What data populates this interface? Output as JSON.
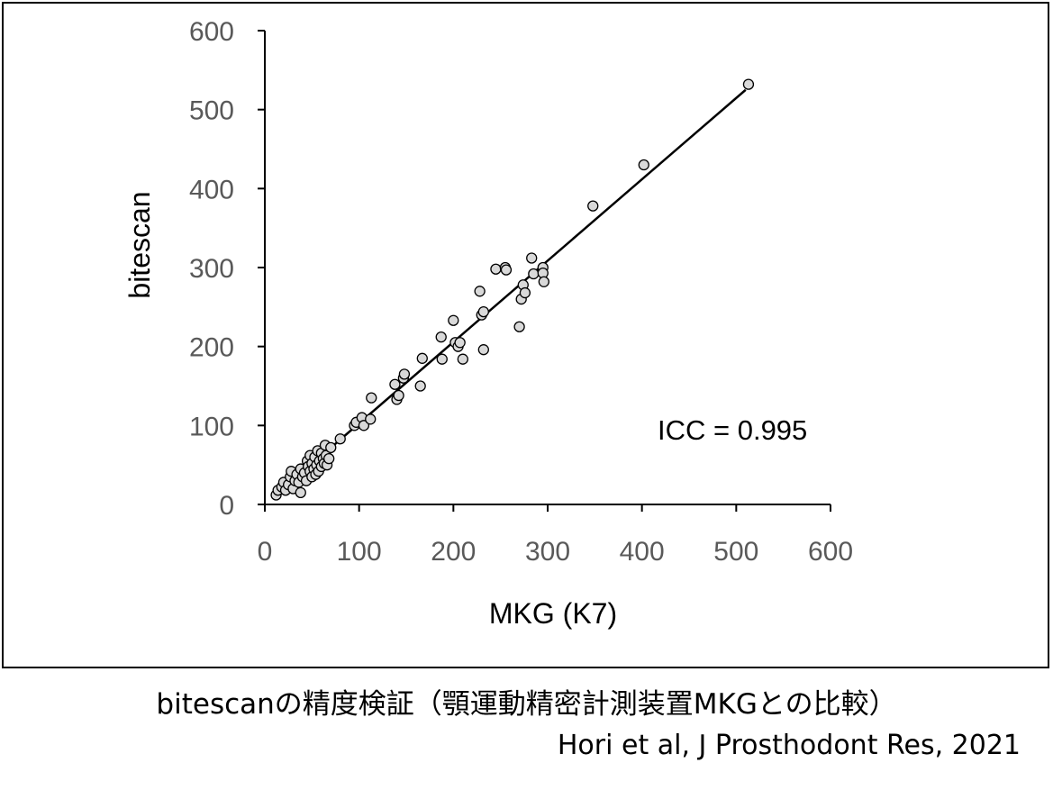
{
  "caption": "bitescanの精度検証（顎運動精密計測装置MKGとの比較）",
  "citation": "Hori et al, J Prosthodont Res, 2021",
  "chart_data": {
    "type": "scatter",
    "xlabel": "MKG (K7)",
    "ylabel": "bitescan",
    "xlim": [
      0,
      600
    ],
    "ylim": [
      0,
      600
    ],
    "xticks": [
      0,
      100,
      200,
      300,
      400,
      500,
      600
    ],
    "yticks": [
      0,
      100,
      200,
      300,
      400,
      500,
      600
    ],
    "grid": false,
    "annotation": "ICC = 0.995",
    "fit_line": {
      "x": [
        10,
        510
      ],
      "y": [
        10,
        525
      ]
    },
    "marker_fill": "#d9d9d9",
    "marker_edge": "#000000",
    "points": [
      [
        12,
        12
      ],
      [
        14,
        18
      ],
      [
        18,
        22
      ],
      [
        20,
        28
      ],
      [
        22,
        18
      ],
      [
        25,
        25
      ],
      [
        27,
        35
      ],
      [
        28,
        42
      ],
      [
        30,
        20
      ],
      [
        32,
        30
      ],
      [
        34,
        38
      ],
      [
        36,
        28
      ],
      [
        38,
        45
      ],
      [
        38,
        15
      ],
      [
        40,
        35
      ],
      [
        42,
        40
      ],
      [
        44,
        30
      ],
      [
        45,
        55
      ],
      [
        46,
        48
      ],
      [
        48,
        62
      ],
      [
        48,
        42
      ],
      [
        50,
        52
      ],
      [
        50,
        35
      ],
      [
        52,
        45
      ],
      [
        53,
        60
      ],
      [
        54,
        38
      ],
      [
        55,
        50
      ],
      [
        56,
        68
      ],
      [
        57,
        42
      ],
      [
        58,
        55
      ],
      [
        60,
        48
      ],
      [
        60,
        65
      ],
      [
        62,
        58
      ],
      [
        63,
        52
      ],
      [
        64,
        75
      ],
      [
        65,
        62
      ],
      [
        66,
        50
      ],
      [
        68,
        58
      ],
      [
        70,
        72
      ],
      [
        80,
        83
      ],
      [
        95,
        100
      ],
      [
        97,
        104
      ],
      [
        103,
        110
      ],
      [
        105,
        100
      ],
      [
        112,
        108
      ],
      [
        113,
        135
      ],
      [
        138,
        152
      ],
      [
        140,
        133
      ],
      [
        142,
        138
      ],
      [
        147,
        160
      ],
      [
        148,
        165
      ],
      [
        165,
        150
      ],
      [
        167,
        185
      ],
      [
        187,
        212
      ],
      [
        188,
        184
      ],
      [
        200,
        233
      ],
      [
        202,
        205
      ],
      [
        205,
        200
      ],
      [
        207,
        205
      ],
      [
        210,
        184
      ],
      [
        228,
        270
      ],
      [
        230,
        240
      ],
      [
        232,
        244
      ],
      [
        232,
        196
      ],
      [
        245,
        298
      ],
      [
        255,
        300
      ],
      [
        256,
        297
      ],
      [
        270,
        225
      ],
      [
        272,
        260
      ],
      [
        274,
        278
      ],
      [
        276,
        268
      ],
      [
        283,
        312
      ],
      [
        285,
        292
      ],
      [
        295,
        300
      ],
      [
        295,
        293
      ],
      [
        296,
        282
      ],
      [
        348,
        378
      ],
      [
        402,
        430
      ],
      [
        513,
        532
      ]
    ]
  }
}
